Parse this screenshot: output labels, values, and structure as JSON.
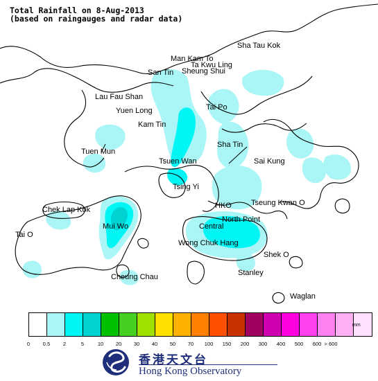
{
  "title": {
    "line1": "Total Rainfall on 8-Aug-2013",
    "line2": "(based on raingauges and radar data)"
  },
  "places": [
    {
      "key": "sha-tau-kok",
      "label": "Sha Tau Kok"
    },
    {
      "key": "man-kam-to",
      "label": "Man Kam To"
    },
    {
      "key": "ta-kwu-ling",
      "label": "Ta Kwu Ling"
    },
    {
      "key": "san-tin",
      "label": "San Tin"
    },
    {
      "key": "sheung-shui",
      "label": "Sheung Shui"
    },
    {
      "key": "lau-fau-shan",
      "label": "Lau Fau Shan"
    },
    {
      "key": "yuen-long",
      "label": "Yuen Long"
    },
    {
      "key": "tai-po",
      "label": "Tai Po"
    },
    {
      "key": "kam-tin",
      "label": "Kam Tin"
    },
    {
      "key": "tuen-mun",
      "label": "Tuen Mun"
    },
    {
      "key": "sha-tin",
      "label": "Sha Tin"
    },
    {
      "key": "tsuen-wan",
      "label": "Tsuen Wan"
    },
    {
      "key": "sai-kung",
      "label": "Sai Kung"
    },
    {
      "key": "tsing-yi",
      "label": "Tsing Yi"
    },
    {
      "key": "chek-lap-kok",
      "label": "Chek Lap Kok"
    },
    {
      "key": "hko",
      "label": "HKO"
    },
    {
      "key": "tseung-kwan-o",
      "label": "Tseung Kwan O"
    },
    {
      "key": "mui-wo",
      "label": "Mui Wo"
    },
    {
      "key": "north-point",
      "label": "North Point"
    },
    {
      "key": "central",
      "label": "Central"
    },
    {
      "key": "tai-o",
      "label": "Tai O"
    },
    {
      "key": "wong-chuk-hang",
      "label": "Wong Chuk Hang"
    },
    {
      "key": "shek-o",
      "label": "Shek O"
    },
    {
      "key": "stanley",
      "label": "Stanley"
    },
    {
      "key": "cheung-chau",
      "label": "Cheung Chau"
    },
    {
      "key": "waglan",
      "label": "Waglan"
    }
  ],
  "legend": {
    "unit": "mm",
    "colors": [
      "#ffffff",
      "#aaf5f5",
      "#00f5f5",
      "#00d2d2",
      "#00c000",
      "#44d020",
      "#a0e000",
      "#ffe000",
      "#ffb000",
      "#ff8000",
      "#ff5000",
      "#c83200",
      "#a00060",
      "#d000b0",
      "#ff00e0",
      "#ff40f0",
      "#ff80f0",
      "#ffb0f5",
      "#ffe0ff"
    ],
    "ticks": [
      "0",
      "0.5",
      "2",
      "5",
      "10",
      "20",
      "30",
      "40",
      "50",
      "70",
      "100",
      "150",
      "200",
      "300",
      "400",
      "500",
      "600",
      "> 600"
    ]
  },
  "organization": {
    "name_cn": "香港天文台",
    "name_en": "Hong Kong Observatory"
  },
  "colors": {
    "rain_light": "#aaf5f5",
    "rain_mid": "#00f5f5",
    "rain_heavy": "#00d2d2",
    "coast": "#000000",
    "logo_blue": "#1f2e7a"
  }
}
